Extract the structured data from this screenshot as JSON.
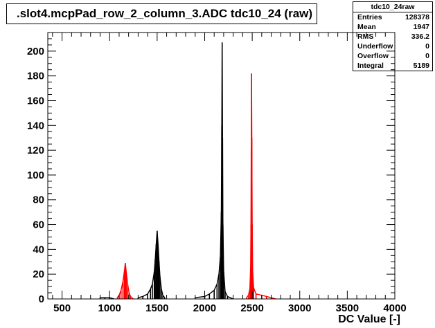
{
  "title": ".slot4.mcpPad_row_2_column_3.ADC tdc10_24 (raw)",
  "stats": {
    "name": "tdc10_24raw",
    "rows": [
      {
        "label": "Entries",
        "value": "128378"
      },
      {
        "label": "Mean",
        "value": "1947"
      },
      {
        "label": "RMS",
        "value": "336.2"
      },
      {
        "label": "Underflow",
        "value": "0"
      },
      {
        "label": "Overflow",
        "value": "0"
      },
      {
        "label": "Integral",
        "value": "5189"
      }
    ]
  },
  "colors": {
    "black_series": "#000000",
    "red_series": "#ff0000"
  },
  "chart_data": {
    "type": "bar",
    "title": ".slot4.mcpPad_row_2_column_3.ADC tdc10_24 (raw)",
    "xlabel": "DC Value [-]",
    "ylabel": "",
    "xlim": [
      350,
      4000
    ],
    "ylim": [
      0,
      215
    ],
    "xticks": [
      500,
      1000,
      1500,
      2000,
      2500,
      3000,
      3500,
      4000
    ],
    "yticks": [
      0,
      20,
      40,
      60,
      80,
      100,
      120,
      140,
      160,
      180,
      200
    ],
    "grid": false,
    "series": [
      {
        "color": "#000000",
        "points": [
          [
            900,
            1
          ],
          [
            950,
            1
          ],
          [
            1000,
            1
          ],
          [
            1050,
            0
          ],
          [
            1300,
            1
          ],
          [
            1350,
            2
          ],
          [
            1400,
            4
          ],
          [
            1430,
            8
          ],
          [
            1450,
            12
          ],
          [
            1470,
            22
          ],
          [
            1480,
            32
          ],
          [
            1490,
            44
          ],
          [
            1500,
            55
          ],
          [
            1510,
            44
          ],
          [
            1520,
            30
          ],
          [
            1530,
            18
          ],
          [
            1545,
            8
          ],
          [
            1560,
            3
          ],
          [
            1580,
            1
          ],
          [
            1900,
            1
          ],
          [
            2000,
            2
          ],
          [
            2050,
            4
          ],
          [
            2100,
            7
          ],
          [
            2130,
            12
          ],
          [
            2150,
            20
          ],
          [
            2165,
            34
          ],
          [
            2175,
            70
          ],
          [
            2180,
            140
          ],
          [
            2184,
            207
          ],
          [
            2188,
            130
          ],
          [
            2192,
            60
          ],
          [
            2200,
            22
          ],
          [
            2215,
            6
          ],
          [
            2240,
            2
          ],
          [
            2300,
            0
          ]
        ]
      },
      {
        "color": "#ff0000",
        "points": [
          [
            1080,
            1
          ],
          [
            1100,
            3
          ],
          [
            1120,
            7
          ],
          [
            1140,
            14
          ],
          [
            1155,
            22
          ],
          [
            1165,
            29
          ],
          [
            1175,
            22
          ],
          [
            1190,
            12
          ],
          [
            1205,
            5
          ],
          [
            1220,
            2
          ],
          [
            1250,
            0
          ],
          [
            2440,
            1
          ],
          [
            2460,
            3
          ],
          [
            2475,
            8
          ],
          [
            2483,
            25
          ],
          [
            2487,
            60
          ],
          [
            2490,
            120
          ],
          [
            2493,
            182
          ],
          [
            2496,
            130
          ],
          [
            2500,
            60
          ],
          [
            2505,
            22
          ],
          [
            2515,
            9
          ],
          [
            2540,
            4
          ],
          [
            2600,
            3
          ],
          [
            2650,
            2
          ],
          [
            2700,
            1
          ],
          [
            2750,
            0
          ]
        ]
      }
    ]
  }
}
